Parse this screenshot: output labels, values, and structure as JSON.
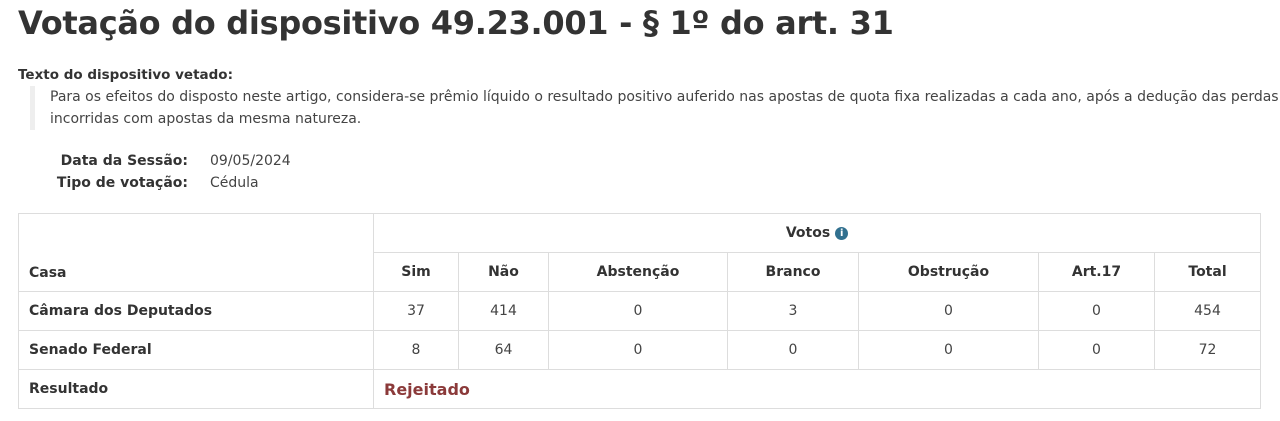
{
  "title": "Votação do dispositivo 49.23.001 - § 1º do art. 31",
  "texto_label": "Texto do dispositivo vetado:",
  "texto": "Para os efeitos do disposto neste artigo, considera-se prêmio líquido o resultado positivo auferido nas apostas de quota fixa realizadas a cada ano, após a dedução das perdas incorridas com apostas da mesma natureza.",
  "meta": {
    "data_label": "Data da Sessão:",
    "data": "09/05/2024",
    "tipo_label": "Tipo de votação:",
    "tipo": "Cédula"
  },
  "table": {
    "votos_label": "Votos",
    "casa_label": "Casa",
    "columns": [
      "Sim",
      "Não",
      "Abstenção",
      "Branco",
      "Obstrução",
      "Art.17",
      "Total"
    ],
    "rows": [
      {
        "casa": "Câmara dos Deputados",
        "values": [
          "37",
          "414",
          "0",
          "3",
          "0",
          "0",
          "454"
        ]
      },
      {
        "casa": "Senado Federal",
        "values": [
          "8",
          "64",
          "0",
          "0",
          "0",
          "0",
          "72"
        ]
      }
    ],
    "resultado_label": "Resultado",
    "resultado": "Rejeitado",
    "resultado_color": "#8b3a3a"
  }
}
